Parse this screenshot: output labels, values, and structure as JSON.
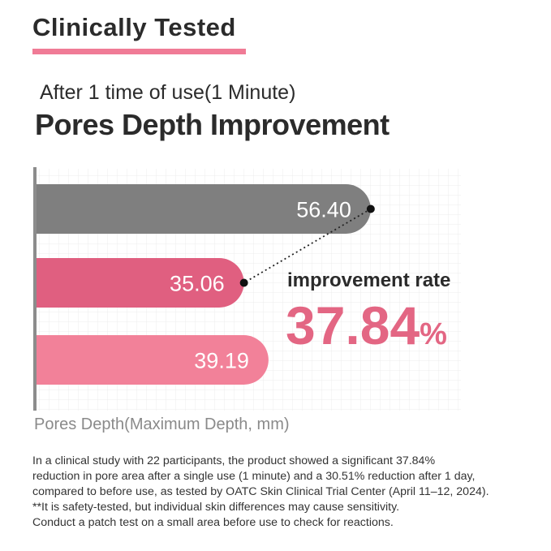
{
  "header": {
    "badge": "Clinically Tested",
    "subtitle": "After 1 time of use(1 Minute)",
    "title": "Pores Depth Improvement"
  },
  "colors": {
    "accent": "#f07b96",
    "before_bar": "#7f7f7f",
    "after_bar": "#e05f80",
    "day_bar": "#f28199",
    "rate_text": "#e36683",
    "axis": "#8c8c8c"
  },
  "chart_data": {
    "type": "bar",
    "orientation": "horizontal",
    "categories": [
      "",
      "",
      ""
    ],
    "values": [
      56.4,
      35.06,
      39.19
    ],
    "value_labels": [
      "56.40",
      "35.06",
      "39.19"
    ],
    "xlabel": "Pores Depth(Maximum Depth, mm)",
    "grid": true,
    "xlim": [
      0,
      60
    ],
    "annotation": {
      "label": "improvement rate",
      "value": "37.84",
      "unit": "%",
      "connects": [
        0,
        1
      ]
    }
  },
  "footnote": {
    "lines": [
      "In a clinical study with 22 participants, the product showed a significant 37.84%",
      "reduction in pore area after a single use (1 minute) and a 30.51% reduction after 1 day,",
      "compared to before use, as tested by OATC Skin Clinical Trial Center (April 11–12, 2024).",
      "**It is safety-tested, but individual skin differences may cause sensitivity.",
      "Conduct a patch test on a small area before use to check for reactions."
    ]
  }
}
